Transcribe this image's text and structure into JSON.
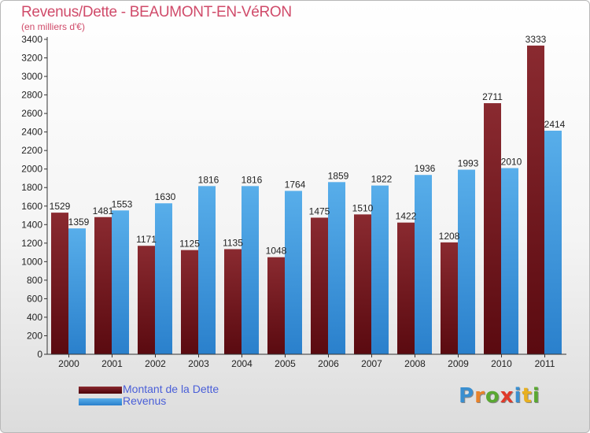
{
  "title": "Revenus/Dette - BEAUMONT-EN-VéRON",
  "subtitle": "(en milliers d'€)",
  "colors": {
    "dette": "#7a1c22",
    "revenus": "#3a97e0",
    "title": "#d04b6a",
    "legend_text": "#4a5fd8"
  },
  "legend": [
    {
      "label": "Montant de la Dette",
      "color": "#6b0d14"
    },
    {
      "label": "Revenus",
      "color": "#3a97e0"
    }
  ],
  "logo": {
    "letters": [
      "P",
      "r",
      "o",
      "x",
      "i",
      "t",
      "i"
    ],
    "colors": [
      "#3a8fd0",
      "#e8822a",
      "#5aa832",
      "#e03a2a",
      "#3a8fd0",
      "#e8b020",
      "#5aa832"
    ]
  },
  "chart_data": {
    "type": "bar",
    "title": "Revenus/Dette - BEAUMONT-EN-VéRON",
    "subtitle": "(en milliers d'€)",
    "categories": [
      "2000",
      "2001",
      "2002",
      "2003",
      "2004",
      "2005",
      "2006",
      "2007",
      "2008",
      "2009",
      "2010",
      "2011"
    ],
    "series": [
      {
        "name": "Montant de la Dette",
        "values": [
          1529,
          1481,
          1171,
          1125,
          1135,
          1048,
          1475,
          1510,
          1422,
          1208,
          2711,
          3333
        ]
      },
      {
        "name": "Revenus",
        "values": [
          1359,
          1553,
          1630,
          1816,
          1816,
          1764,
          1859,
          1822,
          1936,
          1993,
          2010,
          2414
        ]
      }
    ],
    "data_labels": [
      [
        "1529",
        "1481",
        "1171",
        "1125",
        "1135",
        "1048",
        "1475",
        "1510",
        "1422",
        "1208",
        "2711",
        "3333"
      ],
      [
        "1359",
        "1553",
        "1630",
        "1816",
        "1816",
        "1764",
        "1859",
        "1822",
        "1936",
        "1993",
        "2010",
        "2414"
      ]
    ],
    "yticks": [
      0,
      200,
      400,
      600,
      800,
      1000,
      1200,
      1400,
      1600,
      1800,
      2000,
      2200,
      2400,
      2600,
      2800,
      3000,
      3200,
      3400
    ],
    "ylim": [
      0,
      3400
    ],
    "grid": false,
    "legend_position": "bottom-left"
  }
}
